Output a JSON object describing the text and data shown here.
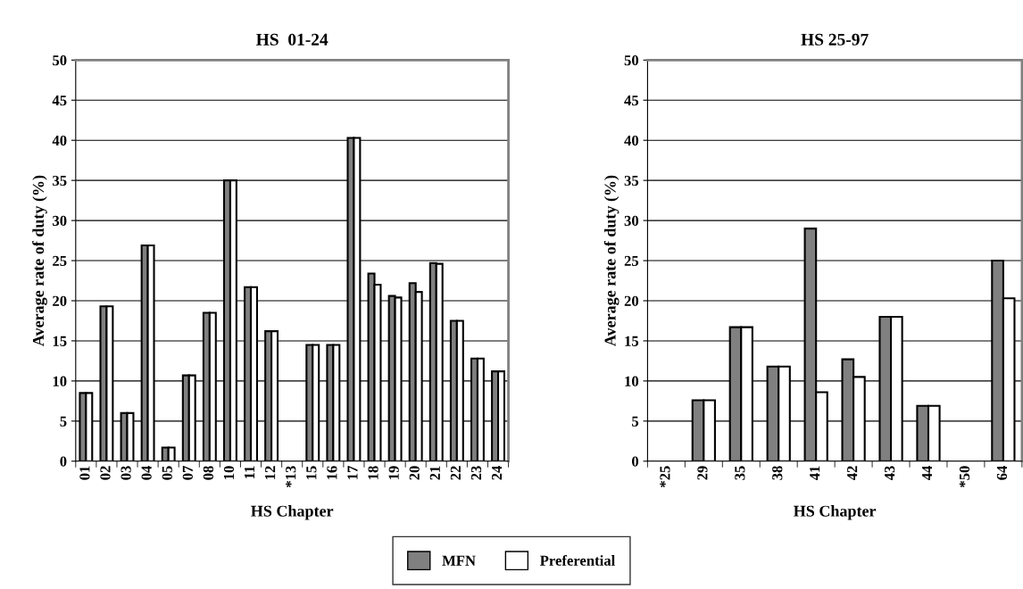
{
  "chart_data": [
    {
      "type": "bar",
      "title": "HS  01-24",
      "xlabel": "HS Chapter",
      "ylabel": "Average rate of duty (%)",
      "categories": [
        "01",
        "02",
        "03",
        "04",
        "05",
        "07",
        "08",
        "10",
        "11",
        "12",
        "*13",
        "15",
        "16",
        "17",
        "18",
        "19",
        "20",
        "21",
        "22",
        "23",
        "24"
      ],
      "series": [
        {
          "name": "MFN",
          "color": "#808080",
          "values": [
            8.5,
            19.3,
            6.0,
            26.9,
            1.7,
            10.7,
            18.5,
            35.0,
            21.7,
            16.2,
            null,
            14.5,
            14.5,
            40.3,
            23.4,
            20.6,
            22.2,
            24.7,
            17.5,
            12.8,
            11.2
          ]
        },
        {
          "name": "Preferential",
          "color": "#ffffff",
          "values": [
            8.5,
            19.3,
            6.0,
            26.9,
            1.7,
            10.7,
            18.5,
            35.0,
            21.7,
            16.2,
            null,
            14.5,
            14.5,
            40.3,
            22.0,
            20.4,
            21.1,
            24.6,
            17.5,
            12.8,
            11.2
          ]
        }
      ],
      "ylim": [
        0,
        50
      ],
      "yticks": [
        0,
        5,
        10,
        15,
        20,
        25,
        30,
        35,
        40,
        45,
        50
      ],
      "grid": "y",
      "legend": "bottom"
    },
    {
      "type": "bar",
      "title": "HS 25-97",
      "xlabel": "HS Chapter",
      "ylabel": "Average rate of duty (%)",
      "categories": [
        "*25",
        "29",
        "35",
        "38",
        "41",
        "42",
        "43",
        "44",
        "*50",
        "64"
      ],
      "series": [
        {
          "name": "MFN",
          "color": "#808080",
          "values": [
            null,
            7.6,
            16.7,
            11.8,
            29.0,
            12.7,
            18.0,
            6.9,
            null,
            25.0
          ]
        },
        {
          "name": "Preferential",
          "color": "#ffffff",
          "values": [
            null,
            7.6,
            16.7,
            11.8,
            8.6,
            10.5,
            18.0,
            6.9,
            null,
            20.3
          ]
        }
      ],
      "ylim": [
        0,
        50
      ],
      "yticks": [
        0,
        5,
        10,
        15,
        20,
        25,
        30,
        35,
        40,
        45,
        50
      ],
      "grid": "y",
      "legend": "bottom"
    }
  ]
}
